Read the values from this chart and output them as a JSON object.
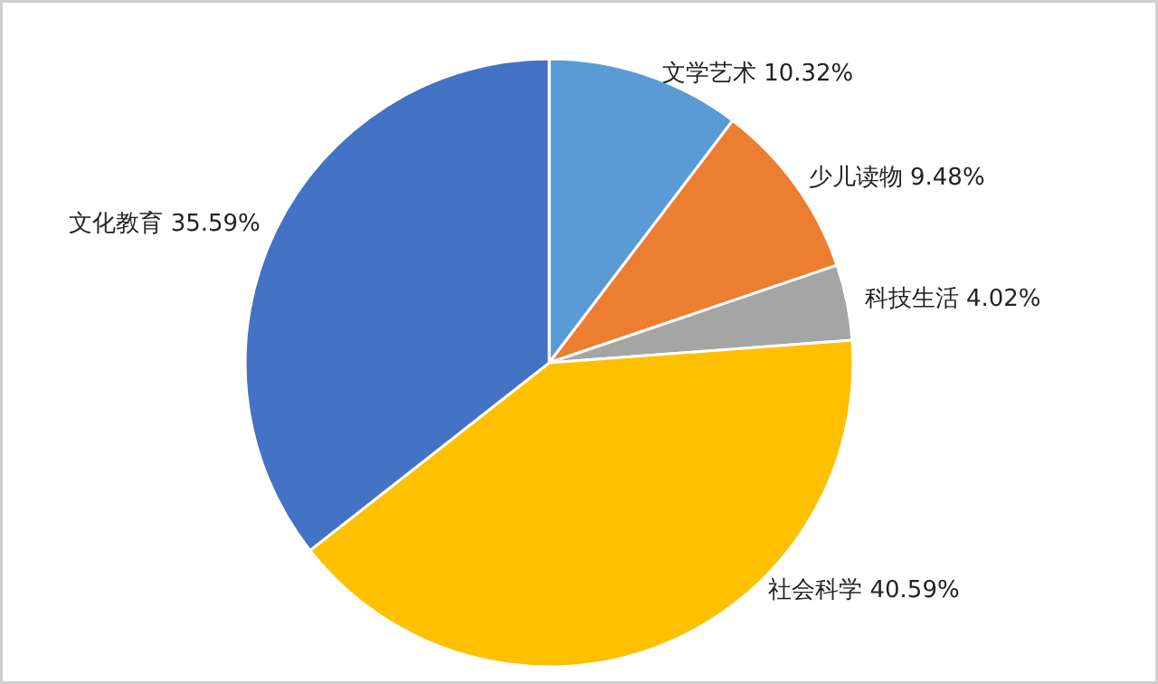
{
  "chart_data": {
    "type": "pie",
    "categories": [
      "文学艺术",
      "少儿读物",
      "科技生活",
      "社会科学",
      "文化教育"
    ],
    "values": [
      10.32,
      9.48,
      4.02,
      40.59,
      35.59
    ],
    "colors": [
      "#5b9bd5",
      "#ed7d31",
      "#a5a5a5",
      "#ffc000",
      "#4472c4"
    ],
    "value_labels": [
      "10.32%",
      "9.48%",
      "4.02%",
      "40.59%",
      "35.59%"
    ]
  }
}
